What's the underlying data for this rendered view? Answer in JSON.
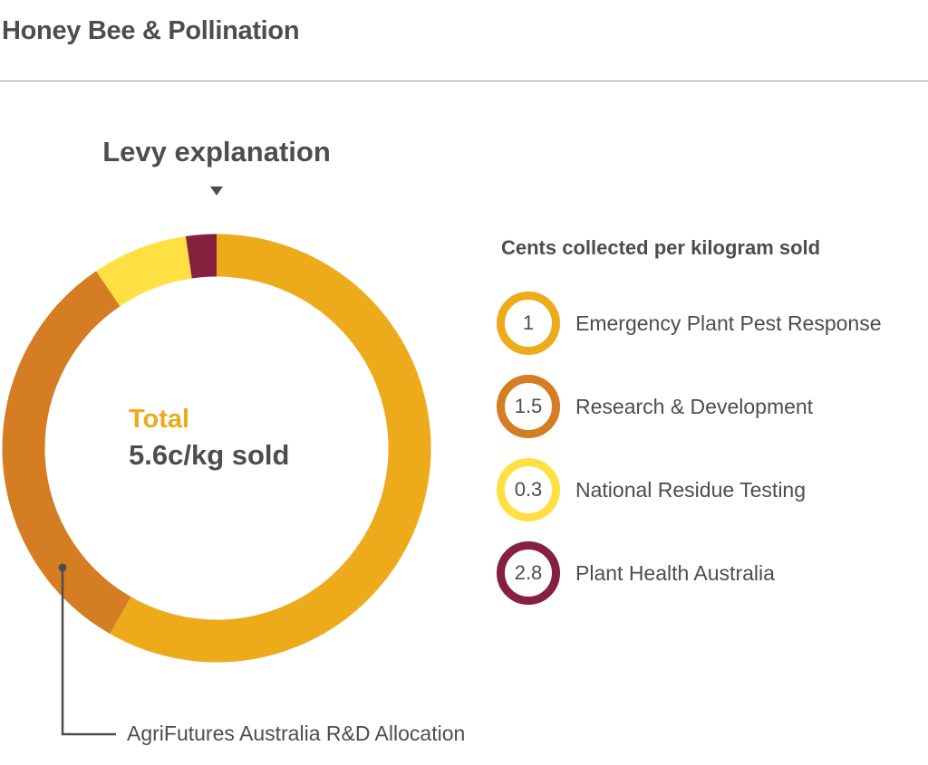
{
  "header": {
    "title": "Honey Bee & Pollination"
  },
  "chart_data": {
    "type": "pie",
    "title": "Levy explanation",
    "center_label": {
      "title": "Total",
      "value": "5.6c/kg sold"
    },
    "legend_title": "Cents collected per kilogram sold",
    "legend_placement": "right",
    "series": [
      {
        "name": "Emergency Plant Pest Response",
        "value": 1,
        "label": "1",
        "color": "#edab1c"
      },
      {
        "name": "Research & Development",
        "value": 1.5,
        "label": "1.5",
        "color": "#d47d22"
      },
      {
        "name": "National Residue Testing",
        "value": 0.3,
        "label": "0.3",
        "color": "#ffe043"
      },
      {
        "name": "Plant Health Australia",
        "value": 2.8,
        "label": "2.8",
        "color": "#85213f"
      }
    ],
    "ring_segments_shown_percent": [
      {
        "color": "#edab1c",
        "percent": 58.3
      },
      {
        "color": "#d47d22",
        "percent": 32.2
      },
      {
        "color": "#ffe043",
        "percent": 7.2
      },
      {
        "color": "#85213f",
        "percent": 2.3
      }
    ],
    "annotation": "AgriFutures Australia R&D Allocation"
  }
}
